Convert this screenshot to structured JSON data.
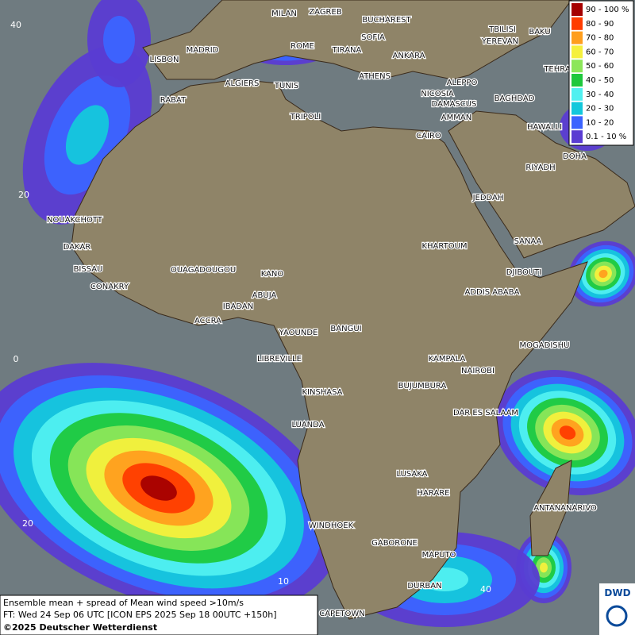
{
  "legend": {
    "items": [
      {
        "label": "90 - 100 %",
        "color": "#a50000"
      },
      {
        "label": "80 - 90",
        "color": "#ff3c00"
      },
      {
        "label": "70 - 80",
        "color": "#ff9e1e"
      },
      {
        "label": "60 - 70",
        "color": "#f5f03c"
      },
      {
        "label": "50 - 60",
        "color": "#8ce65a"
      },
      {
        "label": "40 - 50",
        "color": "#1ec83c"
      },
      {
        "label": "30 - 40",
        "color": "#50f0f0"
      },
      {
        "label": "20 - 30",
        "color": "#14c8dc"
      },
      {
        "label": "10 - 20",
        "color": "#3c64ff"
      },
      {
        "label": "0.1 - 10 %",
        "color": "#5a3cd2"
      }
    ]
  },
  "cities": [
    "MILAN",
    "ZAGREB",
    "BUCHAREST",
    "MADRID",
    "SOFIA",
    "BAKU",
    "TBILISI",
    "YEREVAN",
    "LISBON",
    "ROME",
    "TIRANA",
    "ANKARA",
    "TEHRA",
    "ALGIERS",
    "TUNIS",
    "ATHENS",
    "ALEPPO",
    "RABAT",
    "NICOSIA",
    "BAGHDAD",
    "DAMASCUS",
    "AMMAN",
    "TRIPOLI",
    "CAIRO",
    "HAWALLI",
    "DOHA",
    "RIYADH",
    "JEDDAH",
    "NOUAKCHOTT",
    "SANAA",
    "KHARTOUM",
    "DAKAR",
    "BISSAU",
    "DJIBOUTI",
    "OUAGADOUGOU",
    "KANO",
    "CONAKRY",
    "ADDIS ABABA",
    "ABUJA",
    "IBADAN",
    "ACCRA",
    "YAOUNDE",
    "BANGUI",
    "MOGADISHU",
    "LIBREVILLE",
    "KAMPALA",
    "NAIROBI",
    "BUJUMBURA",
    "KINSHASA",
    "DAR ES SALAAM",
    "LUANDA",
    "LUSAKA",
    "HARARE",
    "ANTANANARIVO",
    "WINDHOEK",
    "GABORONE",
    "MAPUTO",
    "DURBAN",
    "CAPETOWN"
  ],
  "graticule": [
    "40",
    "20",
    "0",
    "20",
    "10",
    "40"
  ],
  "footer": {
    "line1": "Ensemble mean + spread of Mean wind speed >10m/s",
    "line2": "FT: Wed 24 Sep 06 UTC [ICON EPS 2025 Sep 18 00UTC +150h]",
    "line3": "©2025 Deutscher Wetterdienst"
  },
  "logo": "DWD"
}
